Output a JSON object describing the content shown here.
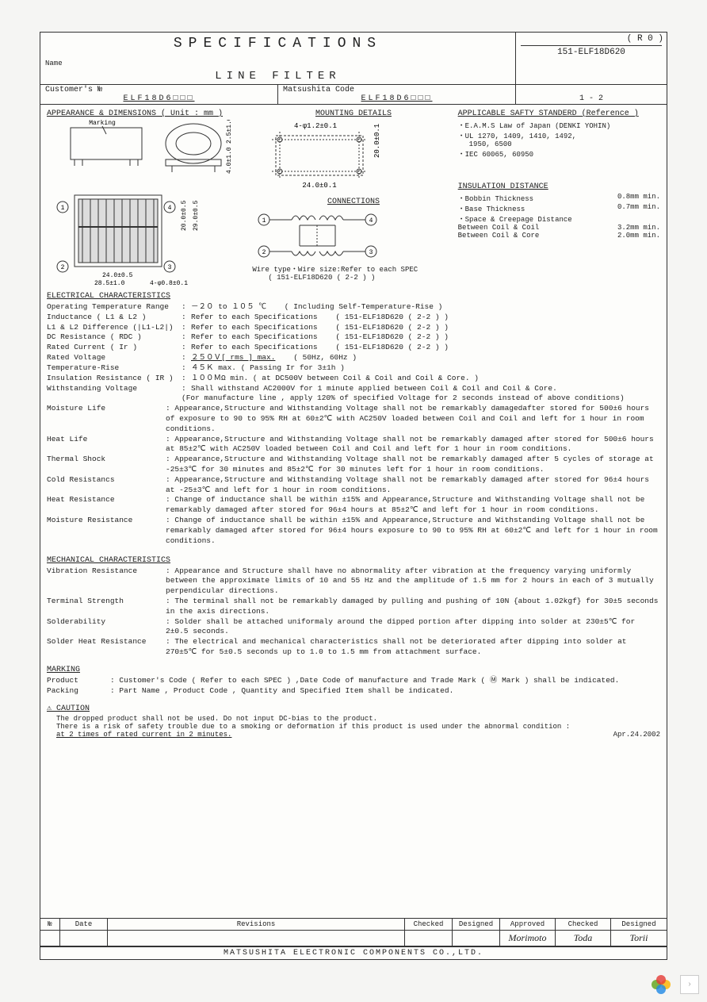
{
  "header": {
    "title": "SPECIFICATIONS",
    "doc_no": "151-ELF18D620",
    "revision": "( R  0 )",
    "name_label": "Name",
    "product_name": "LINE  FILTER",
    "customer_label": "Customer's №",
    "customer_code": "ELF18D6□□□",
    "matsushita_label": "Matsushita Code",
    "matsushita_code": "ELF18D6□□□",
    "page": "1  -  2"
  },
  "appearance": {
    "title": "APPEARANCE & DIMENSIONS ( Unit : mm )",
    "marking_label": "Marking",
    "dim_h1": "2.5±1.0",
    "dim_h2": "4.0±1.0",
    "dim_w1": "24.0±0.5",
    "dim_w2": "28.5±1.0",
    "dim_v1": "20.0±0.5",
    "dim_v2": "29.0±0.5",
    "hole": "4-φ0.8±0.1"
  },
  "mounting": {
    "title": "MOUNTING DETAILS",
    "hole": "4-φ1.2±0.1",
    "w": "24.0±0.1",
    "h": "20.0±0.1"
  },
  "connections": {
    "title": "CONNECTIONS",
    "note1": "Wire type・Wire size:Refer to each SPEC",
    "note2": "( 151-ELF18D620 ( 2-2 ) )"
  },
  "safety": {
    "title": "APPLICABLE SAFTY STANDERD (Reference )",
    "s1": "・E.A.M.S Law of Japan (DENKI YOHIN)",
    "s2": "・UL 1270, 1409, 1410, 1492,",
    "s2b": "  1950, 6500",
    "s3": "・IEC 60065, 60950"
  },
  "insulation": {
    "title": "INSULATION DISTANCE",
    "r1": "・Bobbin Thickness",
    "v1": "0.8mm min.",
    "r2": "・Base Thickness",
    "v2": "0.7mm min.",
    "r3": "・Space & Creepage Distance",
    "r4": "  Between Coil & Coil",
    "v4": "3.2mm min.",
    "r5": "  Between Coil & Core",
    "v5": "2.0mm min."
  },
  "elec": {
    "title": "ELECTRICAL CHARACTERISTICS",
    "rows": [
      {
        "l": "Operating Temperature Range",
        "v": "－２０ to １０５ ℃",
        "n": "( Including Self-Temperature-Rise )"
      },
      {
        "l": "Inductance ( L1 & L2 )",
        "v": "Refer to each Specifications",
        "n": "( 151-ELF18D620 ( 2-2 ) )"
      },
      {
        "l": "L1 & L2 Difference (|L1-L2|)",
        "v": "Refer to each Specifications",
        "n": "( 151-ELF18D620 ( 2-2 ) )"
      },
      {
        "l": "DC Resistance ( RDC )",
        "v": "Refer to each Specifications",
        "n": "( 151-ELF18D620 ( 2-2 ) )"
      },
      {
        "l": "Rated Current ( Ir )",
        "v": "Refer to each Specifications",
        "n": "( 151-ELF18D620 ( 2-2 ) )"
      },
      {
        "l": "Rated Voltage",
        "v": " ２５０Ｖ[ rms ] max.",
        "n": "( 50Hz, 60Hz )",
        "u": true
      },
      {
        "l": "Temperature-Rise",
        "v": "４５Ｋ max.     ( Passing Ir for 3±1h )",
        "n": ""
      },
      {
        "l": "Insulation Resistance ( IR )",
        "v": "１００ＭΩ min.   ( at DC500V between Coil & Coil and Coil & Core. )",
        "n": ""
      },
      {
        "l": "Withstanding Voltage",
        "v": "Shall withstand AC2000V for 1 minute applied between Coil & Coil and Coil & Core.",
        "n": ""
      }
    ],
    "withstand2": "(For manufacture line , apply 120% of specified Voltage for 2 seconds instead of above conditions)",
    "moisture_life_l": "Moisture Life",
    "moisture_life": ": Appearance,Structure and Withstanding Voltage shall not be remarkably damagedafter stored for 500±6 hours of exposure to 90 to 95% RH at 60±2℃ with AC250V loaded between Coil and Coil and left for 1 hour in room conditions.",
    "heat_life_l": "Heat Life",
    "heat_life": ": Appearance,Structure and Withstanding Voltage shall not be remarkably damaged after stored for 500±6 hours at 85±2℃ with AC250V loaded between Coil and Coil and left for 1 hour in room conditions.",
    "thermal_l": "Thermal Shock",
    "thermal": ": Appearance,Structure and Withstanding Voltage shall not be remarkably damaged after 5 cycles of storage at -25±3℃ for 30 minutes and 85±2℃ for 30 minutes left for 1 hour in room conditions.",
    "cold_l": "Cold Resistancs",
    "cold": ": Appearance,Structure and Withstanding Voltage shall not be remarkably damaged after stored for 96±4 hours at -25±3℃ and left for 1 hour in room conditions.",
    "heatr_l": "Heat Resistance",
    "heatr": ": Change of inductance shall be within ±15% and Appearance,Structure and Withstanding Voltage shall not be remarkably damaged after stored for 96±4 hours at 85±2℃ and left for 1 hour in room conditions.",
    "moistr_l": "Moisture Resistance",
    "moistr": ": Change of inductance shall be within ±15% and Appearance,Structure and Withstanding Voltage shall not be remarkably damaged after stored  for 96±4 hours exposure to 90 to 95% RH at 60±2℃ and left for 1 hour in room conditions."
  },
  "mech": {
    "title": "MECHANICAL CHARACTERISTICS",
    "vib_l": "Vibration Resistance",
    "vib": ": Appearance and Structure shall have no abnormality after vibration at the frequency varying uniformly between the approximate limits of 10 and 55 Hz and the amplitude of 1.5 mm for 2 hours in each of 3 mutually perpendicular directions.",
    "term_l": "Terminal Strength",
    "term": ": The terminal shall not be remarkably damaged by pulling and pushing of 10N {about 1.02kgf} for 30±5 seconds in the axis directions.",
    "sold_l": "Solderability",
    "sold": ": Solder shall be attached uniformaly around the dipped portion after dipping into solder at 230±5℃ for 2±0.5 seconds.",
    "shr_l": "Solder Heat Resistance",
    "shr": ": The electrical and mechanical characteristics shall not be deteriorated after dipping into solder at 270±5℃ for 5±0.5 seconds up to 1.0 to 1.5 mm from attachment surface."
  },
  "marking": {
    "title": "MARKING",
    "product_l": "Product",
    "product": ": Customer's Code ( Refer to each SPEC ) ,Date Code of manufacture and Trade Mark ( Ⓜ Mark ) shall be indicated.",
    "packing_l": "Packing",
    "packing": ": Part Name , Product Code , Quantity and Specified Item shall be indicated."
  },
  "caution": {
    "title": "⚠ CAUTION",
    "l1": "The dropped product shall not be used. Do not input DC-bias to the product.",
    "l2": "There is a risk of safety trouble due to a smoking or deformation if this product is used under the abnormal condition :",
    "l3": "at 2 times of rated current in 2 minutes.",
    "date": "Apr.24.2002"
  },
  "footer": {
    "cols": [
      "№",
      "Date",
      "Revisions",
      "Checked",
      "Designed",
      "Approved",
      "Checked",
      "Designed"
    ],
    "company": "MATSUSHITA  ELECTRONIC  COMPONENTS  CO.,LTD."
  }
}
